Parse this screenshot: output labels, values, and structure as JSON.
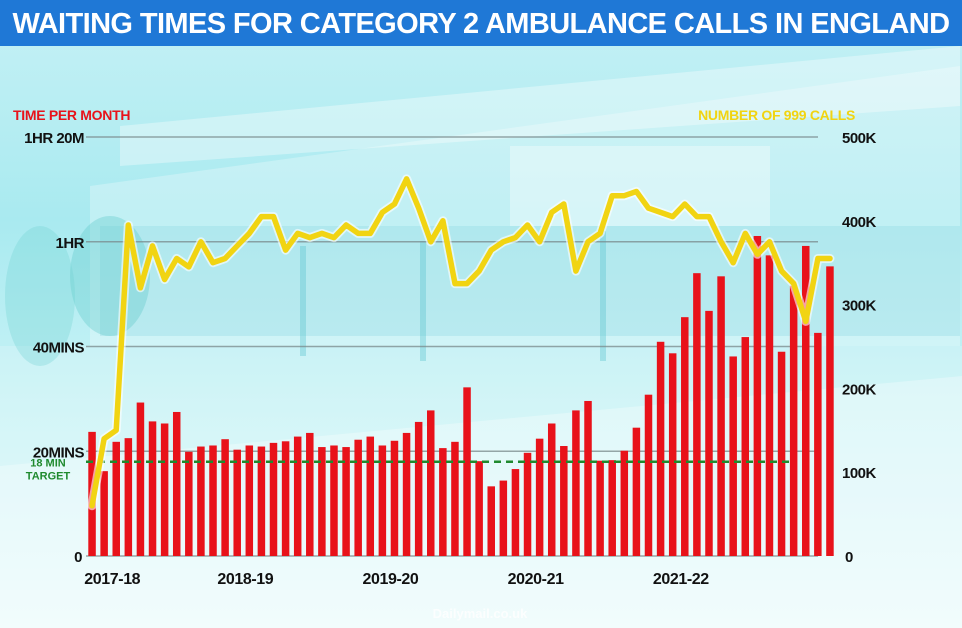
{
  "header": {
    "title": "WAITING TIMES FOR CATEGORY 2 AMBULANCE CALLS IN ENGLAND"
  },
  "watermark": "Dailymail.co.uk",
  "colors": {
    "bars": "#e8121a",
    "line": "#f1d412",
    "target": "#1f8a2e",
    "title_bg": "#1f78d6",
    "grid": "#7a8a8c"
  },
  "chart_data": {
    "type": "bar+line",
    "title": "WAITING TIMES FOR CATEGORY 2 AMBULANCE CALLS IN ENGLAND",
    "left_axis": {
      "label": "TIME PER MONTH",
      "unit": "minutes",
      "range": [
        0,
        80
      ],
      "ticks": [
        {
          "value": 0,
          "label": "0"
        },
        {
          "value": 20,
          "label": "20MINS"
        },
        {
          "value": 40,
          "label": "40MINS"
        },
        {
          "value": 60,
          "label": "1HR"
        },
        {
          "value": 80,
          "label": "1HR 20M"
        }
      ]
    },
    "right_axis": {
      "label": "NUMBER OF 999 CALLS",
      "range": [
        0,
        500000
      ],
      "ticks": [
        {
          "value": 0,
          "label": "0"
        },
        {
          "value": 100000,
          "label": "100K"
        },
        {
          "value": 200000,
          "label": "200K"
        },
        {
          "value": 300000,
          "label": "300K"
        },
        {
          "value": 400000,
          "label": "400K"
        },
        {
          "value": 500000,
          "label": "500K"
        }
      ]
    },
    "x_labels": [
      {
        "label": "2017-18",
        "index": 2
      },
      {
        "label": "2018-19",
        "index": 13
      },
      {
        "label": "2019-20",
        "index": 25
      },
      {
        "label": "2020-21",
        "index": 37
      },
      {
        "label": "2021-22",
        "index": 49
      }
    ],
    "target": {
      "value": 18,
      "label_line1": "18 MIN",
      "label_line2": "TARGET"
    },
    "series": [
      {
        "name": "Time per month",
        "kind": "bar",
        "unit": "minutes",
        "values": [
          23.7,
          16.2,
          21.8,
          22.5,
          29.3,
          25.7,
          25.3,
          27.5,
          19.9,
          20.9,
          21.1,
          22.3,
          20.3,
          21.1,
          20.9,
          21.6,
          21.9,
          22.8,
          23.5,
          20.8,
          21.1,
          20.8,
          22.2,
          22.8,
          21.1,
          22.0,
          23.5,
          25.6,
          27.8,
          20.6,
          21.8,
          32.2,
          18.1,
          13.3,
          14.4,
          16.6,
          19.7,
          22.4,
          25.3,
          21.0,
          27.8,
          29.6,
          18.2,
          18.3,
          20.1,
          24.5,
          30.8,
          40.9,
          38.7,
          45.6,
          54.0,
          46.8,
          53.4,
          38.1,
          41.8,
          61.1,
          57.4,
          39.0,
          51.6,
          59.2,
          42.6,
          55.3
        ]
      },
      {
        "name": "Number of 999 calls",
        "kind": "line",
        "values": [
          60000,
          140000,
          150000,
          395000,
          320000,
          370000,
          330000,
          355000,
          345000,
          375000,
          350000,
          355000,
          370000,
          385000,
          405000,
          405000,
          365000,
          385000,
          380000,
          385000,
          380000,
          395000,
          385000,
          385000,
          410000,
          420000,
          450000,
          415000,
          375000,
          400000,
          325000,
          325000,
          340000,
          365000,
          375000,
          380000,
          395000,
          375000,
          410000,
          420000,
          340000,
          375000,
          385000,
          430000,
          430000,
          435000,
          415000,
          410000,
          405000,
          420000,
          405000,
          405000,
          375000,
          350000,
          385000,
          360000,
          375000,
          340000,
          325000,
          280000,
          355000,
          355000
        ]
      }
    ]
  }
}
